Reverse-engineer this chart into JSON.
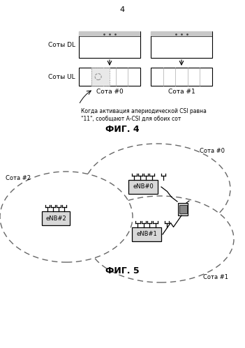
{
  "page_number": "4",
  "fig4_title": "ФИГ. 4",
  "fig5_title": "ФИГ. 5",
  "label_dl": "Соты DL",
  "label_ul": "Соты UL",
  "label_cell0": "Сота #0",
  "label_cell1": "Сота #1",
  "label_cell0_fig5": "Сота #0",
  "label_cell1_fig5": "Сота #1",
  "label_cell2_fig5": "Сота #2",
  "label_enb0": "eNB#0",
  "label_enb1": "eNB#1",
  "label_enb2": "eNB#2",
  "annotation": "Когда активация апериодической CSI равна\n\"11\", сообщают A-CSI для обоих сот",
  "bg_color": "#ffffff",
  "gray_header": "#c8c8c8",
  "gray_box": "#d8d8d8",
  "dashed_color": "#666666",
  "divider_color": "#aaaaaa"
}
